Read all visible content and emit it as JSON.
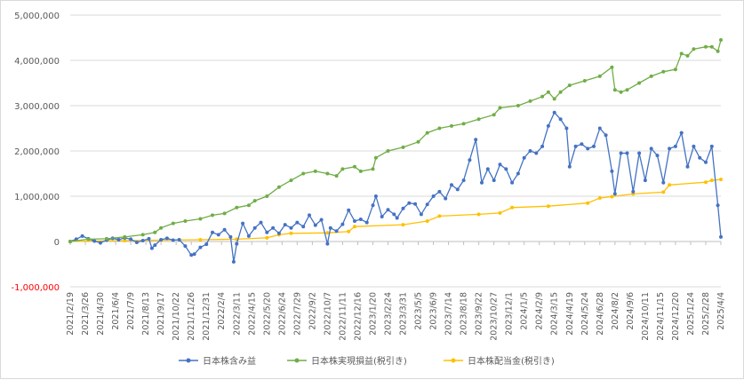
{
  "chart_data": {
    "type": "line",
    "title": "",
    "xlabel": "",
    "ylabel": "",
    "ylim": [
      -1000000,
      5000000
    ],
    "y_ticks": [
      "5,000,000",
      "4,000,000",
      "3,000,000",
      "2,000,000",
      "1,000,000",
      "0",
      "-1,000,000"
    ],
    "y_tick_values": [
      5000000,
      4000000,
      3000000,
      2000000,
      1000000,
      0,
      -1000000
    ],
    "negative_tick_color": "#ff0000",
    "grid": true,
    "legend_position": "bottom",
    "x_range": [
      "2021/2/19",
      "2025/4/4"
    ],
    "x_ticks": [
      "2021/2/19",
      "2021/3/26",
      "2021/4/30",
      "2021/6/4",
      "2021/7/9",
      "2021/8/13",
      "2021/9/17",
      "2021/10/22",
      "2021/11/26",
      "2021/12/31",
      "2022/2/4",
      "2022/3/11",
      "2022/4/15",
      "2022/5/20",
      "2022/6/24",
      "2022/7/29",
      "2022/9/2",
      "2022/10/7",
      "2022/11/11",
      "2022/12/16",
      "2023/1/20",
      "2023/2/24",
      "2023/3/31",
      "2023/5/5",
      "2023/6/9",
      "2023/7/14",
      "2023/8/18",
      "2023/9/22",
      "2023/10/27",
      "2023/12/1",
      "2024/1/5",
      "2024/2/9",
      "2024/3/15",
      "2024/4/19",
      "2024/5/24",
      "2024/6/28",
      "2024/8/2",
      "2024/9/6",
      "2024/10/11",
      "2024/11/15",
      "2024/12/20",
      "2025/1/24",
      "2025/2/28",
      "2025/4/4"
    ],
    "series": [
      {
        "name": "日本株含み益",
        "color": "#4472c4",
        "points": [
          [
            "2021/2/19",
            0
          ],
          [
            "2021/3/5",
            50000
          ],
          [
            "2021/3/19",
            120000
          ],
          [
            "2021/4/2",
            60000
          ],
          [
            "2021/4/16",
            10000
          ],
          [
            "2021/4/30",
            -30000
          ],
          [
            "2021/5/14",
            30000
          ],
          [
            "2021/5/28",
            70000
          ],
          [
            "2021/6/11",
            40000
          ],
          [
            "2021/6/25",
            80000
          ],
          [
            "2021/7/9",
            50000
          ],
          [
            "2021/7/23",
            -20000
          ],
          [
            "2021/8/6",
            20000
          ],
          [
            "2021/8/20",
            60000
          ],
          [
            "2021/8/27",
            -150000
          ],
          [
            "2021/9/3",
            -80000
          ],
          [
            "2021/9/17",
            40000
          ],
          [
            "2021/10/1",
            70000
          ],
          [
            "2021/10/15",
            30000
          ],
          [
            "2021/10/29",
            40000
          ],
          [
            "2021/11/12",
            -100000
          ],
          [
            "2021/11/26",
            -300000
          ],
          [
            "2021/12/3",
            -280000
          ],
          [
            "2021/12/17",
            -130000
          ],
          [
            "2021/12/31",
            -60000
          ],
          [
            "2022/1/14",
            200000
          ],
          [
            "2022/1/28",
            150000
          ],
          [
            "2022/2/11",
            260000
          ],
          [
            "2022/2/25",
            100000
          ],
          [
            "2022/3/4",
            -450000
          ],
          [
            "2022/3/11",
            -50000
          ],
          [
            "2022/3/25",
            400000
          ],
          [
            "2022/4/8",
            120000
          ],
          [
            "2022/4/22",
            300000
          ],
          [
            "2022/5/6",
            420000
          ],
          [
            "2022/5/20",
            200000
          ],
          [
            "2022/6/3",
            300000
          ],
          [
            "2022/6/17",
            180000
          ],
          [
            "2022/7/1",
            370000
          ],
          [
            "2022/7/15",
            300000
          ],
          [
            "2022/7/29",
            420000
          ],
          [
            "2022/8/12",
            330000
          ],
          [
            "2022/8/26",
            580000
          ],
          [
            "2022/9/9",
            360000
          ],
          [
            "2022/9/23",
            480000
          ],
          [
            "2022/10/7",
            -50000
          ],
          [
            "2022/10/14",
            300000
          ],
          [
            "2022/10/28",
            230000
          ],
          [
            "2022/11/11",
            380000
          ],
          [
            "2022/11/25",
            690000
          ],
          [
            "2022/12/9",
            450000
          ],
          [
            "2022/12/23",
            490000
          ],
          [
            "2023/1/6",
            420000
          ],
          [
            "2023/1/20",
            800000
          ],
          [
            "2023/1/27",
            1000000
          ],
          [
            "2023/2/10",
            550000
          ],
          [
            "2023/2/24",
            700000
          ],
          [
            "2023/3/10",
            600000
          ],
          [
            "2023/3/17",
            520000
          ],
          [
            "2023/3/31",
            730000
          ],
          [
            "2023/4/14",
            850000
          ],
          [
            "2023/4/28",
            830000
          ],
          [
            "2023/5/12",
            600000
          ],
          [
            "2023/5/26",
            820000
          ],
          [
            "2023/6/9",
            1000000
          ],
          [
            "2023/6/23",
            1100000
          ],
          [
            "2023/7/7",
            950000
          ],
          [
            "2023/7/21",
            1250000
          ],
          [
            "2023/8/4",
            1150000
          ],
          [
            "2023/8/18",
            1350000
          ],
          [
            "2023/9/1",
            1800000
          ],
          [
            "2023/9/15",
            2250000
          ],
          [
            "2023/9/29",
            1300000
          ],
          [
            "2023/10/13",
            1600000
          ],
          [
            "2023/10/27",
            1350000
          ],
          [
            "2023/11/10",
            1700000
          ],
          [
            "2023/11/24",
            1600000
          ],
          [
            "2023/12/8",
            1300000
          ],
          [
            "2023/12/22",
            1500000
          ],
          [
            "2024/1/5",
            1850000
          ],
          [
            "2024/1/19",
            2000000
          ],
          [
            "2024/2/2",
            1950000
          ],
          [
            "2024/2/16",
            2100000
          ],
          [
            "2024/3/1",
            2550000
          ],
          [
            "2024/3/15",
            2850000
          ],
          [
            "2024/3/29",
            2700000
          ],
          [
            "2024/4/12",
            2500000
          ],
          [
            "2024/4/19",
            1650000
          ],
          [
            "2024/5/3",
            2100000
          ],
          [
            "2024/5/17",
            2150000
          ],
          [
            "2024/5/31",
            2050000
          ],
          [
            "2024/6/14",
            2100000
          ],
          [
            "2024/6/28",
            2500000
          ],
          [
            "2024/7/12",
            2350000
          ],
          [
            "2024/7/26",
            1550000
          ],
          [
            "2024/8/2",
            1050000
          ],
          [
            "2024/8/16",
            1950000
          ],
          [
            "2024/8/30",
            1950000
          ],
          [
            "2024/9/13",
            1100000
          ],
          [
            "2024/9/27",
            1950000
          ],
          [
            "2024/10/11",
            1350000
          ],
          [
            "2024/10/25",
            2050000
          ],
          [
            "2024/11/8",
            1900000
          ],
          [
            "2024/11/22",
            1300000
          ],
          [
            "2024/12/6",
            2050000
          ],
          [
            "2024/12/20",
            2100000
          ],
          [
            "2025/1/3",
            2400000
          ],
          [
            "2025/1/17",
            1650000
          ],
          [
            "2025/1/31",
            2100000
          ],
          [
            "2025/2/14",
            1850000
          ],
          [
            "2025/2/28",
            1750000
          ],
          [
            "2025/3/14",
            2100000
          ],
          [
            "2025/3/28",
            800000
          ],
          [
            "2025/4/4",
            100000
          ]
        ]
      },
      {
        "name": "日本株実現損益(税引き)",
        "color": "#70ad47",
        "points": [
          [
            "2021/2/19",
            0
          ],
          [
            "2021/4/2",
            50000
          ],
          [
            "2021/5/14",
            60000
          ],
          [
            "2021/6/25",
            100000
          ],
          [
            "2021/8/6",
            150000
          ],
          [
            "2021/9/3",
            200000
          ],
          [
            "2021/9/17",
            300000
          ],
          [
            "2021/10/15",
            400000
          ],
          [
            "2021/11/12",
            450000
          ],
          [
            "2021/12/17",
            500000
          ],
          [
            "2022/1/14",
            580000
          ],
          [
            "2022/2/11",
            620000
          ],
          [
            "2022/3/11",
            750000
          ],
          [
            "2022/4/8",
            800000
          ],
          [
            "2022/4/22",
            900000
          ],
          [
            "2022/5/20",
            1000000
          ],
          [
            "2022/6/17",
            1200000
          ],
          [
            "2022/7/15",
            1350000
          ],
          [
            "2022/8/12",
            1500000
          ],
          [
            "2022/9/9",
            1550000
          ],
          [
            "2022/10/7",
            1500000
          ],
          [
            "2022/10/28",
            1450000
          ],
          [
            "2022/11/11",
            1600000
          ],
          [
            "2022/12/9",
            1650000
          ],
          [
            "2022/12/23",
            1550000
          ],
          [
            "2023/1/20",
            1600000
          ],
          [
            "2023/1/27",
            1850000
          ],
          [
            "2023/2/24",
            2000000
          ],
          [
            "2023/3/31",
            2080000
          ],
          [
            "2023/5/5",
            2200000
          ],
          [
            "2023/5/26",
            2400000
          ],
          [
            "2023/6/23",
            2500000
          ],
          [
            "2023/7/21",
            2550000
          ],
          [
            "2023/8/18",
            2600000
          ],
          [
            "2023/9/22",
            2700000
          ],
          [
            "2023/10/27",
            2800000
          ],
          [
            "2023/11/10",
            2950000
          ],
          [
            "2023/12/22",
            3000000
          ],
          [
            "2024/1/19",
            3100000
          ],
          [
            "2024/2/16",
            3200000
          ],
          [
            "2024/3/1",
            3300000
          ],
          [
            "2024/3/15",
            3150000
          ],
          [
            "2024/3/29",
            3300000
          ],
          [
            "2024/4/19",
            3450000
          ],
          [
            "2024/5/24",
            3550000
          ],
          [
            "2024/6/28",
            3650000
          ],
          [
            "2024/7/26",
            3850000
          ],
          [
            "2024/8/2",
            3350000
          ],
          [
            "2024/8/16",
            3300000
          ],
          [
            "2024/8/30",
            3350000
          ],
          [
            "2024/9/27",
            3500000
          ],
          [
            "2024/10/25",
            3650000
          ],
          [
            "2024/11/22",
            3750000
          ],
          [
            "2024/12/20",
            3800000
          ],
          [
            "2025/1/3",
            4150000
          ],
          [
            "2025/1/17",
            4100000
          ],
          [
            "2025/1/31",
            4250000
          ],
          [
            "2025/2/28",
            4300000
          ],
          [
            "2025/3/14",
            4300000
          ],
          [
            "2025/3/28",
            4200000
          ],
          [
            "2025/4/4",
            4450000
          ]
        ]
      },
      {
        "name": "日本株配当金(税引き)",
        "color": "#ffc000",
        "points": [
          [
            "2021/2/19",
            0
          ],
          [
            "2021/6/25",
            20000
          ],
          [
            "2021/9/17",
            30000
          ],
          [
            "2021/12/17",
            40000
          ],
          [
            "2022/3/11",
            50000
          ],
          [
            "2022/5/20",
            80000
          ],
          [
            "2022/6/17",
            150000
          ],
          [
            "2022/7/15",
            180000
          ],
          [
            "2022/10/7",
            190000
          ],
          [
            "2022/11/25",
            220000
          ],
          [
            "2022/12/9",
            330000
          ],
          [
            "2023/3/31",
            370000
          ],
          [
            "2023/5/26",
            450000
          ],
          [
            "2023/6/23",
            560000
          ],
          [
            "2023/9/22",
            600000
          ],
          [
            "2023/11/10",
            630000
          ],
          [
            "2023/12/8",
            750000
          ],
          [
            "2024/3/1",
            780000
          ],
          [
            "2024/5/31",
            850000
          ],
          [
            "2024/6/28",
            960000
          ],
          [
            "2024/7/26",
            990000
          ],
          [
            "2024/9/13",
            1050000
          ],
          [
            "2024/11/22",
            1090000
          ],
          [
            "2024/12/6",
            1250000
          ],
          [
            "2025/2/28",
            1310000
          ],
          [
            "2025/3/14",
            1350000
          ],
          [
            "2025/4/4",
            1370000
          ]
        ]
      }
    ]
  }
}
